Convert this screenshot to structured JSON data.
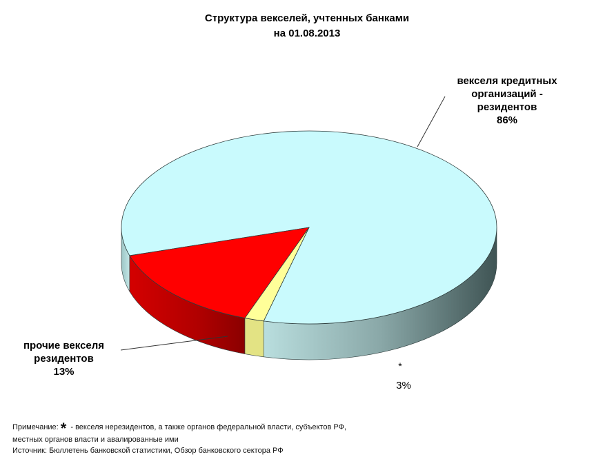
{
  "chart_data": {
    "type": "pie",
    "title": [
      "Структура  векселей, учтенных  банками",
      "на 01.08.2013"
    ],
    "slices": [
      {
        "label": [
          "векселя кредитных",
          "организаций -",
          "резидентов"
        ],
        "value_label": "86%",
        "value": 86,
        "color": "#c9fafd"
      },
      {
        "label": [
          "прочие векселя",
          "резидентов"
        ],
        "value_label": "13%",
        "value": 13,
        "color": "#ff0000"
      },
      {
        "label": [
          "*"
        ],
        "value_label": "3%",
        "value": 3,
        "color": "#ffff99"
      }
    ]
  },
  "footnote": {
    "note_prefix": "Примечание:",
    "note_star": "*",
    "note_text": " - векселя нерезидентов, а также органов федеральной власти, субъектов РФ,",
    "note_line2": "местных органов власти   и авалированные ими",
    "source": "Источник: Бюллетень банковской статистики, Обзор банковского сектора РФ"
  }
}
